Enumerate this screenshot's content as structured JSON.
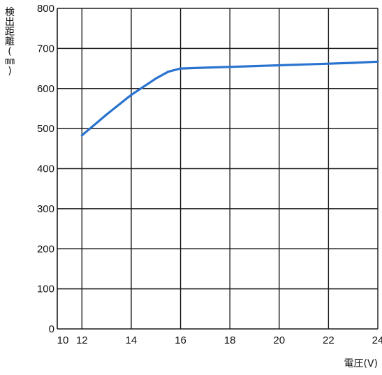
{
  "chart_data": {
    "type": "line",
    "title": "",
    "xlabel": "電圧(V)",
    "ylabel": "検出距離(㎜)",
    "ylabel_chars": [
      "検",
      "出",
      "距",
      "離",
      "(",
      "㎜",
      ")"
    ],
    "xlim": [
      11,
      24
    ],
    "ylim": [
      0,
      800
    ],
    "xticks": [
      10,
      12,
      14,
      16,
      18,
      20,
      22,
      24
    ],
    "yticks": [
      0,
      100,
      200,
      300,
      400,
      500,
      600,
      700,
      800
    ],
    "grid": true,
    "legend": "none",
    "series": [
      {
        "color": "#2a73cf",
        "x": [
          12,
          13,
          14,
          15,
          15.5,
          16,
          17,
          18,
          19,
          20,
          21,
          22,
          23,
          24
        ],
        "y": [
          483,
          535,
          584,
          625,
          642,
          650,
          652,
          654,
          656,
          658,
          660,
          662,
          664,
          667
        ]
      }
    ]
  }
}
